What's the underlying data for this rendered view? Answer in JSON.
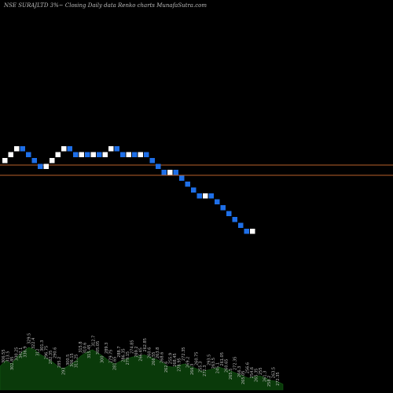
{
  "chart_data": {
    "type": "renko",
    "title": "NSE SURAJLTD 3%~  Closing Daily data  Renko  charts MunafaSutra.com",
    "brick_directions": [
      1,
      1,
      1,
      -1,
      -1,
      -1,
      -1,
      1,
      1,
      1,
      1,
      -1,
      -1,
      1,
      -1,
      1,
      -1,
      1,
      1,
      -1,
      -1,
      1,
      -1,
      1,
      -1,
      -1,
      -1,
      -1,
      1,
      -1,
      -1,
      -1,
      -1,
      -1,
      1,
      -1,
      -1,
      -1,
      -1,
      -1,
      -1,
      -1,
      1
    ],
    "brick_colors": {
      "up": "#ffffff",
      "down": "#1e6fe8"
    },
    "horizontal_line_colors": [
      "#b8602a",
      "#b8602a"
    ],
    "volume_fill_color": "#0a3a0a",
    "volume_labels": [
      "306.55",
      "313.5",
      "302.85",
      "330.25",
      "342.1",
      "336.9",
      "329.5",
      "322.4",
      "312",
      "301.3",
      "296.75",
      "282.35",
      "290.6",
      "285.2",
      "293",
      "300.5",
      "306.15",
      "311.25",
      "315.8",
      "310.6",
      "315.45",
      "312.7",
      "305.05",
      "300",
      "289.3",
      "279.75",
      "281.65",
      "288.7",
      "286.35",
      "279.15",
      "274.85",
      "269.2",
      "266.45",
      "262.85",
      "260.6",
      "266.55",
      "263.8",
      "268.6",
      "262.6",
      "255.9",
      "268.45",
      "278.95",
      "272.35",
      "269.2",
      "266.3",
      "260.75",
      "255.3",
      "272.3",
      "293.5",
      "263.5",
      "245.1",
      "261.05",
      "260.65",
      "265.5",
      "272.35",
      "266.3",
      "265.05",
      "256.6",
      "254.6",
      "265.35",
      "255",
      "261.3",
      "258.2",
      "263.5",
      "272.35"
    ],
    "volume_profile": [
      0.5,
      0.62,
      0.55,
      0.7,
      0.82,
      0.9,
      0.85,
      0.75,
      0.68,
      0.6,
      0.5,
      0.45,
      0.52,
      0.6,
      0.72,
      0.8,
      0.85,
      0.78,
      0.7,
      0.6,
      0.55,
      0.62,
      0.66,
      0.7,
      0.72,
      0.74,
      0.7,
      0.65,
      0.6,
      0.5,
      0.48,
      0.52,
      0.55,
      0.5,
      0.45,
      0.4,
      0.42,
      0.45,
      0.48,
      0.44,
      0.4,
      0.35,
      0.3,
      0.25,
      0.28,
      0.3,
      0.25,
      0.2,
      0.18,
      0.12
    ]
  }
}
